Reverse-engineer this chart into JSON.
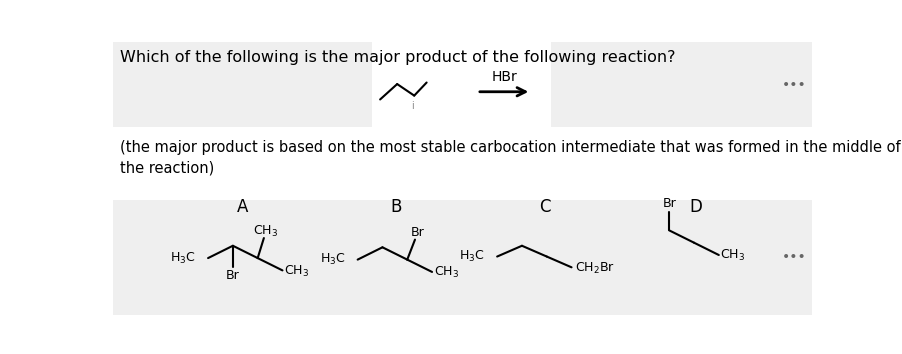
{
  "title": "Which of the following is the major product of the following reaction?",
  "subtitle": "(the major product is based on the most stable carbocation intermediate that was formed in the middle of\nthe reaction)",
  "hbr_label": "HBr",
  "options": [
    "A",
    "B",
    "C",
    "D"
  ],
  "bg_color": "#ffffff",
  "text_color": "#000000",
  "gray_bg": "#efefef",
  "dots": "•••",
  "font_size_title": 11.5,
  "font_size_sub": 10.5,
  "font_size_label": 12,
  "font_size_chem": 9
}
